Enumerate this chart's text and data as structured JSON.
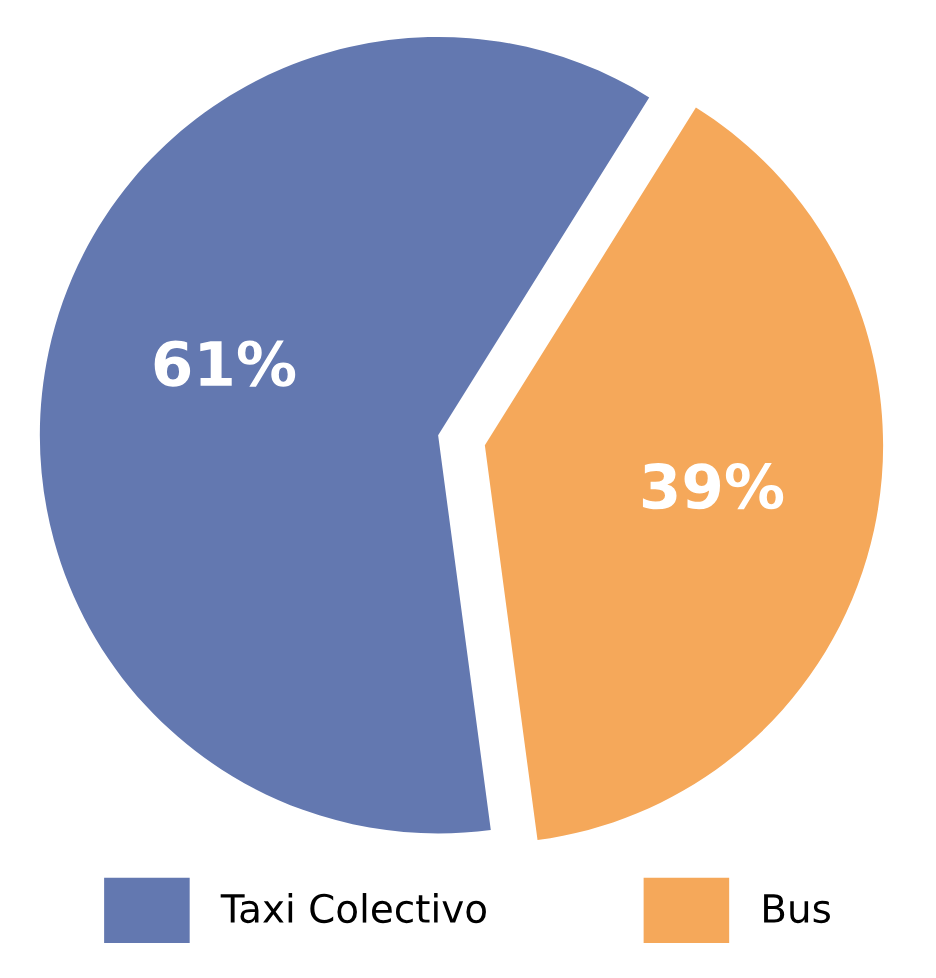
{
  "chart_data": {
    "type": "pie",
    "categories": [
      "Taxi Colectivo",
      "Bus"
    ],
    "values": [
      61,
      39
    ],
    "colors": [
      "#6378b0",
      "#f5a85a"
    ],
    "value_labels": [
      "61%",
      "39%"
    ],
    "legend": "bottom"
  }
}
